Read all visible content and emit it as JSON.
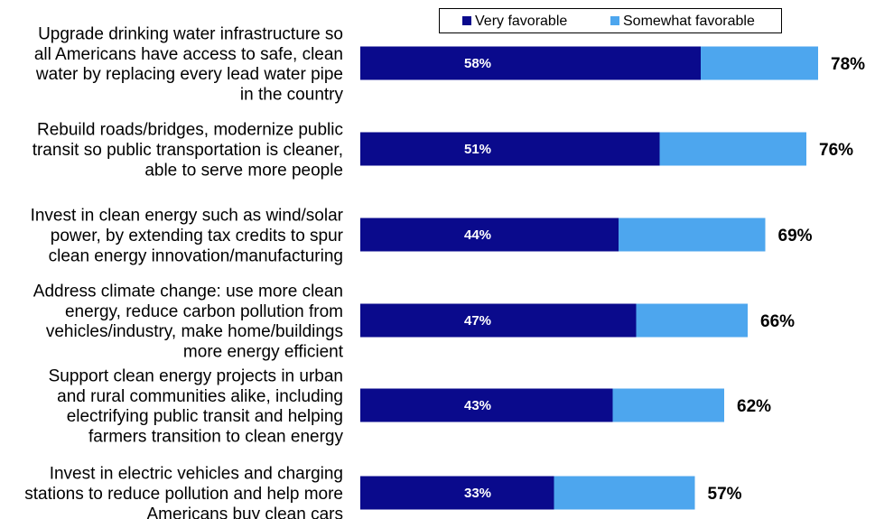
{
  "chart_data": {
    "type": "bar",
    "orientation": "horizontal",
    "stacked": true,
    "legend": {
      "placement": "top",
      "entries": [
        "Very favorable",
        "Somewhat favorable"
      ]
    },
    "colors": {
      "very": "#0a0a8c",
      "somewhat": "#4da6ee"
    },
    "xlim": [
      0,
      100
    ],
    "grid": false,
    "categories": [
      [
        "Upgrade drinking water infrastructure so",
        "all Americans have access to safe, clean",
        "water by replacing every lead water pipe",
        "in the country"
      ],
      [
        "Rebuild roads/bridges, modernize public",
        "transit so public transportation is cleaner,",
        "able to serve more people"
      ],
      [
        "Invest in clean energy such as wind/solar",
        "power, by extending tax credits to spur",
        "clean energy innovation/manufacturing"
      ],
      [
        "Address climate change: use more clean",
        "energy, reduce carbon pollution from",
        "vehicles/industry, make home/buildings",
        "more energy efficient"
      ],
      [
        "Support clean energy projects in urban",
        "and rural communities alike, including",
        "electrifying public transit and helping",
        "farmers transition to clean energy"
      ],
      [
        "Invest in electric vehicles and charging",
        "stations to reduce pollution and help more",
        "Americans buy clean cars"
      ]
    ],
    "series": [
      {
        "name": "Very favorable",
        "values": [
          58,
          51,
          44,
          47,
          43,
          33
        ]
      },
      {
        "name": "Somewhat favorable",
        "values": [
          20,
          25,
          25,
          19,
          19,
          24
        ]
      }
    ],
    "totals": [
      78,
      76,
      69,
      66,
      62,
      57
    ]
  }
}
